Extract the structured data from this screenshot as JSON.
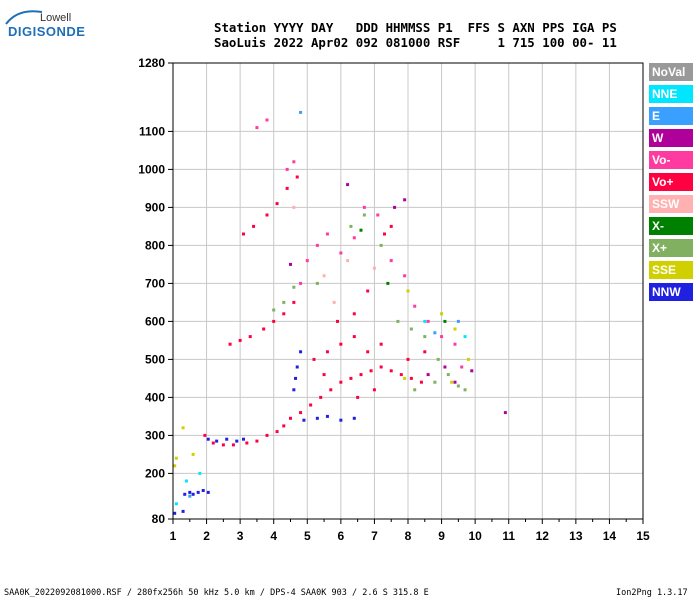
{
  "logo": {
    "top": "Lowell",
    "main": "DIGISONDE"
  },
  "header": {
    "line1": "Station YYYY DAY   DDD HHMMSS P1  FFS S AXN PPS IGA PS",
    "line2": "SaoLuis 2022 Apr02 092 081000 RSF     1 715 100 00- 11"
  },
  "footer": {
    "left": "SAA0K_2022092081000.RSF / 280fx256h 50 kHz 5.0 km / DPS-4 SAA0K 903 / 2.6 S 315.8 E",
    "right": "Ion2Png 1.3.17"
  },
  "legend": [
    {
      "label": "NoVal",
      "color": "#999999"
    },
    {
      "label": "NNE",
      "color": "#00e6ff"
    },
    {
      "label": "E",
      "color": "#3aa0ff"
    },
    {
      "label": "W",
      "color": "#b0009a"
    },
    {
      "label": "Vo-",
      "color": "#ff3aa0"
    },
    {
      "label": "Vo+",
      "color": "#ff0040"
    },
    {
      "label": "SSW",
      "color": "#ffb0b0"
    },
    {
      "label": "X-",
      "color": "#008000"
    },
    {
      "label": "X+",
      "color": "#80b060"
    },
    {
      "label": "SSE",
      "color": "#d0d000"
    },
    {
      "label": "NNW",
      "color": "#2020e0"
    }
  ],
  "chart_data": {
    "type": "scatter",
    "xlim": [
      1,
      15
    ],
    "ylim": [
      80,
      1280
    ],
    "x_ticks": [
      1,
      2,
      3,
      4,
      5,
      6,
      7,
      8,
      9,
      10,
      11,
      12,
      13,
      14,
      15
    ],
    "y_ticks": [
      80,
      200,
      300,
      400,
      500,
      600,
      700,
      800,
      900,
      1000,
      1100,
      1280
    ],
    "grid": true,
    "series": [
      {
        "name": "NNW",
        "color": "#2020e0",
        "points": [
          [
            1.35,
            145
          ],
          [
            1.5,
            150
          ],
          [
            1.6,
            145
          ],
          [
            1.75,
            150
          ],
          [
            1.9,
            155
          ],
          [
            2.05,
            150
          ],
          [
            1.3,
            100
          ],
          [
            1.05,
            95
          ],
          [
            2.05,
            290
          ],
          [
            2.3,
            285
          ],
          [
            2.6,
            290
          ],
          [
            2.9,
            285
          ],
          [
            3.1,
            290
          ],
          [
            4.9,
            340
          ],
          [
            5.3,
            345
          ],
          [
            5.6,
            350
          ],
          [
            6.0,
            340
          ],
          [
            6.4,
            345
          ],
          [
            4.6,
            420
          ],
          [
            4.65,
            450
          ],
          [
            4.7,
            480
          ],
          [
            4.8,
            520
          ]
        ]
      },
      {
        "name": "Vo+",
        "color": "#ff0040",
        "points": [
          [
            1.95,
            300
          ],
          [
            2.2,
            280
          ],
          [
            2.5,
            275
          ],
          [
            2.8,
            275
          ],
          [
            3.2,
            280
          ],
          [
            3.5,
            285
          ],
          [
            3.8,
            300
          ],
          [
            4.1,
            310
          ],
          [
            4.3,
            325
          ],
          [
            4.5,
            345
          ],
          [
            4.8,
            360
          ],
          [
            5.1,
            380
          ],
          [
            5.4,
            400
          ],
          [
            5.7,
            420
          ],
          [
            6.0,
            440
          ],
          [
            6.3,
            450
          ],
          [
            6.6,
            460
          ],
          [
            6.9,
            470
          ],
          [
            7.2,
            480
          ],
          [
            7.5,
            470
          ],
          [
            7.8,
            460
          ],
          [
            8.1,
            450
          ],
          [
            8.4,
            440
          ],
          [
            5.2,
            500
          ],
          [
            5.6,
            520
          ],
          [
            6.0,
            540
          ],
          [
            6.4,
            560
          ],
          [
            6.8,
            520
          ],
          [
            7.2,
            540
          ],
          [
            5.5,
            460
          ],
          [
            6.5,
            400
          ],
          [
            7.0,
            420
          ],
          [
            8.0,
            500
          ],
          [
            8.5,
            520
          ],
          [
            2.7,
            540
          ],
          [
            3.0,
            550
          ],
          [
            3.3,
            560
          ],
          [
            3.7,
            580
          ],
          [
            4.0,
            600
          ],
          [
            4.3,
            620
          ],
          [
            4.6,
            650
          ],
          [
            3.1,
            830
          ],
          [
            3.4,
            850
          ],
          [
            3.8,
            880
          ],
          [
            4.1,
            910
          ],
          [
            4.4,
            950
          ],
          [
            4.7,
            980
          ],
          [
            7.3,
            830
          ],
          [
            7.5,
            850
          ],
          [
            6.4,
            620
          ],
          [
            6.8,
            680
          ],
          [
            5.9,
            600
          ]
        ]
      },
      {
        "name": "Vo-",
        "color": "#ff3aa0",
        "points": [
          [
            4.8,
            700
          ],
          [
            5.0,
            760
          ],
          [
            5.3,
            800
          ],
          [
            5.6,
            830
          ],
          [
            6.0,
            780
          ],
          [
            6.4,
            820
          ],
          [
            6.7,
            900
          ],
          [
            7.1,
            880
          ],
          [
            7.5,
            760
          ],
          [
            7.9,
            720
          ],
          [
            8.2,
            640
          ],
          [
            8.6,
            600
          ],
          [
            9.0,
            560
          ],
          [
            9.4,
            540
          ],
          [
            9.6,
            480
          ],
          [
            3.5,
            1110
          ],
          [
            3.8,
            1130
          ],
          [
            4.4,
            1000
          ],
          [
            4.6,
            1020
          ]
        ]
      },
      {
        "name": "X+",
        "color": "#80b060",
        "points": [
          [
            4.0,
            630
          ],
          [
            4.3,
            650
          ],
          [
            4.6,
            690
          ],
          [
            5.3,
            700
          ],
          [
            6.3,
            850
          ],
          [
            6.7,
            880
          ],
          [
            7.2,
            800
          ],
          [
            7.7,
            600
          ],
          [
            8.1,
            580
          ],
          [
            8.5,
            560
          ],
          [
            8.9,
            500
          ],
          [
            9.2,
            460
          ],
          [
            9.5,
            430
          ],
          [
            8.2,
            420
          ],
          [
            8.8,
            440
          ],
          [
            9.7,
            420
          ]
        ]
      },
      {
        "name": "SSE",
        "color": "#d0d000",
        "points": [
          [
            1.05,
            220
          ],
          [
            1.1,
            240
          ],
          [
            1.3,
            320
          ],
          [
            1.6,
            250
          ],
          [
            9.0,
            620
          ],
          [
            9.4,
            580
          ],
          [
            8.0,
            680
          ],
          [
            9.3,
            440
          ],
          [
            7.9,
            450
          ],
          [
            9.8,
            500
          ]
        ]
      },
      {
        "name": "W",
        "color": "#b0009a",
        "points": [
          [
            7.6,
            900
          ],
          [
            7.9,
            920
          ],
          [
            6.2,
            960
          ],
          [
            10.9,
            360
          ],
          [
            9.4,
            440
          ],
          [
            9.9,
            470
          ],
          [
            8.6,
            460
          ],
          [
            9.1,
            480
          ],
          [
            4.5,
            750
          ]
        ]
      },
      {
        "name": "NNE",
        "color": "#00e6ff",
        "points": [
          [
            1.1,
            120
          ],
          [
            1.4,
            180
          ],
          [
            1.8,
            200
          ],
          [
            9.7,
            560
          ],
          [
            8.5,
            600
          ]
        ]
      },
      {
        "name": "E",
        "color": "#3aa0ff",
        "points": [
          [
            1.5,
            140
          ],
          [
            9.5,
            600
          ],
          [
            8.8,
            570
          ],
          [
            4.8,
            1150
          ]
        ]
      },
      {
        "name": "SSW",
        "color": "#ffb0b0",
        "points": [
          [
            5.5,
            720
          ],
          [
            6.2,
            760
          ],
          [
            7.0,
            740
          ],
          [
            4.6,
            900
          ],
          [
            5.8,
            650
          ]
        ]
      },
      {
        "name": "X-",
        "color": "#008000",
        "points": [
          [
            6.6,
            840
          ],
          [
            9.1,
            600
          ],
          [
            7.4,
            700
          ]
        ]
      }
    ]
  }
}
